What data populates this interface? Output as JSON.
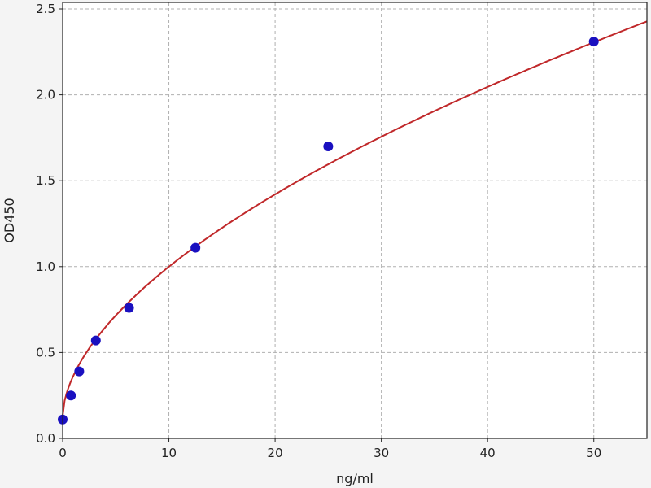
{
  "chart_data": {
    "type": "scatter",
    "title": "",
    "xlabel": "ng/ml",
    "ylabel": "OD450",
    "xlim": [
      0,
      55
    ],
    "ylim": [
      0,
      2.5
    ],
    "xticks": [
      0,
      10,
      20,
      30,
      40,
      50
    ],
    "yticks": [
      0.0,
      0.5,
      1.0,
      1.5,
      2.0,
      2.5
    ],
    "xtick_labels": [
      "0",
      "10",
      "20",
      "30",
      "40",
      "50"
    ],
    "ytick_labels": [
      "0.0",
      "0.5",
      "1.0",
      "1.5",
      "2.0",
      "2.5"
    ],
    "grid": true,
    "points": {
      "x": [
        0,
        0.78,
        1.56,
        3.125,
        6.25,
        12.5,
        25,
        50
      ],
      "y": [
        0.11,
        0.25,
        0.39,
        0.57,
        0.76,
        1.11,
        1.7,
        2.31
      ]
    },
    "fit_curve": {
      "type": "line",
      "description_shown": false
    },
    "colors": {
      "points": "#1a10c0",
      "curve": "#c0282a",
      "grid": "#b0b0b0",
      "background": "#f4f4f4"
    }
  }
}
